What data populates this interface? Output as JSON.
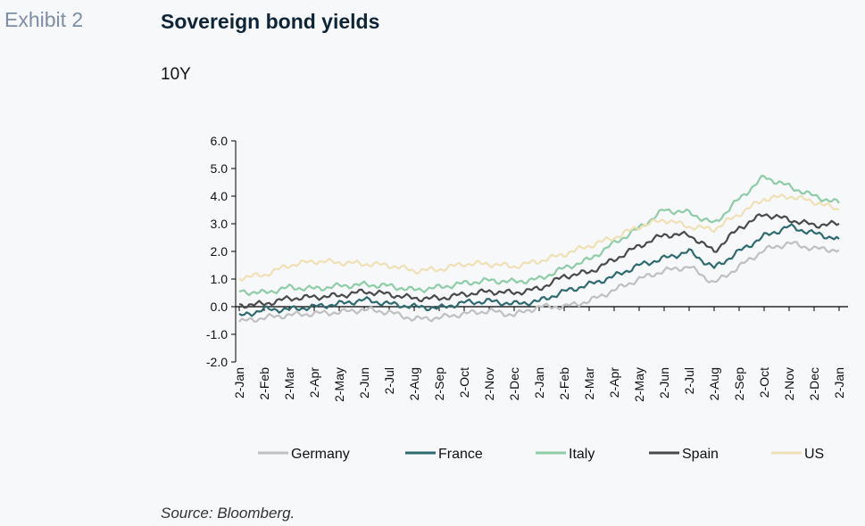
{
  "header": {
    "exhibit": "Exhibit 2",
    "title": "Sovereign bond yields",
    "subtitle": "10Y"
  },
  "footer": {
    "source": "Source: Bloomberg."
  },
  "chart_data": {
    "type": "line",
    "title": "Sovereign bond yields",
    "subtitle": "10Y",
    "xlabel": "",
    "ylabel": "",
    "ylim": [
      -2.0,
      6.0
    ],
    "yticks": [
      "6.0",
      "5.0",
      "4.0",
      "3.0",
      "2.0",
      "1.0",
      "0.0",
      "-1.0",
      "-2.0"
    ],
    "x": [
      "2-Jan",
      "2-Feb",
      "2-Mar",
      "2-Apr",
      "2-May",
      "2-Jun",
      "2-Jul",
      "2-Aug",
      "2-Sep",
      "2-Oct",
      "2-Nov",
      "2-Dec",
      "2-Jan",
      "2-Feb",
      "2-Mar",
      "2-Apr",
      "2-May",
      "2-Jun",
      "2-Jul",
      "2-Aug",
      "2-Sep",
      "2-Oct",
      "2-Nov",
      "2-Dec",
      "2-Jan"
    ],
    "grid": false,
    "legend_position": "bottom",
    "series": [
      {
        "name": "Germany",
        "color": "#c0c0c0",
        "values": [
          -0.55,
          -0.4,
          -0.3,
          -0.25,
          -0.2,
          -0.1,
          -0.2,
          -0.45,
          -0.4,
          -0.25,
          -0.15,
          -0.3,
          0.0,
          0.0,
          0.2,
          0.6,
          1.0,
          1.3,
          1.45,
          0.85,
          1.45,
          2.05,
          2.3,
          2.1,
          2.05
        ]
      },
      {
        "name": "France",
        "color": "#2e6b70",
        "values": [
          -0.35,
          -0.1,
          -0.1,
          0.0,
          0.1,
          0.25,
          0.1,
          0.0,
          -0.05,
          0.15,
          0.2,
          0.1,
          0.2,
          0.55,
          0.8,
          1.1,
          1.5,
          1.75,
          2.0,
          1.4,
          2.0,
          2.55,
          2.9,
          2.65,
          2.45
        ]
      },
      {
        "name": "Italy",
        "color": "#8fcca8",
        "values": [
          0.55,
          0.5,
          0.7,
          0.65,
          0.75,
          0.8,
          0.75,
          0.6,
          0.7,
          0.85,
          0.95,
          0.9,
          1.0,
          1.4,
          1.7,
          2.3,
          2.85,
          3.5,
          3.4,
          3.0,
          3.9,
          4.7,
          4.35,
          4.0,
          3.75
        ]
      },
      {
        "name": "Spain",
        "color": "#4a4a4a",
        "values": [
          0.05,
          0.1,
          0.3,
          0.35,
          0.4,
          0.55,
          0.45,
          0.3,
          0.3,
          0.45,
          0.55,
          0.5,
          0.65,
          1.1,
          1.25,
          1.7,
          2.2,
          2.6,
          2.6,
          2.0,
          2.85,
          3.35,
          3.15,
          2.95,
          3.0
        ]
      },
      {
        "name": "US",
        "color": "#efe0b5",
        "values": [
          1.05,
          1.15,
          1.5,
          1.65,
          1.6,
          1.55,
          1.5,
          1.3,
          1.35,
          1.55,
          1.55,
          1.45,
          1.65,
          1.9,
          2.2,
          2.5,
          2.9,
          3.15,
          2.9,
          2.8,
          3.35,
          3.9,
          4.0,
          3.8,
          3.5
        ]
      }
    ]
  }
}
